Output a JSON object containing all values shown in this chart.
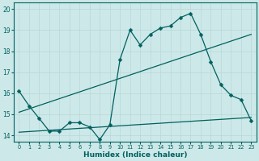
{
  "xlabel": "Humidex (Indice chaleur)",
  "xlim": [
    -0.5,
    23.5
  ],
  "ylim": [
    13.7,
    20.3
  ],
  "ytick_values": [
    14,
    15,
    16,
    17,
    18,
    19,
    20
  ],
  "background_color": "#cde8e8",
  "grid_color": "#b8d8d8",
  "line_color": "#006060",
  "series": [
    {
      "x": [
        0,
        1,
        2,
        3,
        4,
        5,
        6,
        7,
        8,
        9,
        10,
        11,
        12,
        13,
        14,
        15,
        16,
        17,
        18,
        19,
        20,
        21,
        22,
        23
      ],
      "y": [
        16.1,
        15.4,
        14.8,
        14.2,
        14.2,
        14.6,
        14.6,
        14.4,
        13.8,
        14.5,
        17.6,
        19.0,
        18.3,
        18.8,
        19.1,
        19.2,
        19.6,
        19.8,
        18.8,
        17.5,
        16.4,
        15.9,
        15.7,
        14.7
      ],
      "has_markers": true
    },
    {
      "x": [
        0,
        23
      ],
      "y": [
        15.1,
        18.8
      ],
      "has_markers": false
    },
    {
      "x": [
        0,
        23
      ],
      "y": [
        14.15,
        14.85
      ],
      "has_markers": false
    }
  ]
}
